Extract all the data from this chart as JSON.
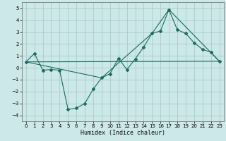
{
  "title": "",
  "xlabel": "Humidex (Indice chaleur)",
  "bg_color": "#cce8e8",
  "grid_color": "#aacccc",
  "line_color": "#1a6b60",
  "xlim": [
    -0.5,
    23.5
  ],
  "ylim": [
    -4.5,
    5.5
  ],
  "yticks": [
    -4,
    -3,
    -2,
    -1,
    0,
    1,
    2,
    3,
    4,
    5
  ],
  "xticks": [
    0,
    1,
    2,
    3,
    4,
    5,
    6,
    7,
    8,
    9,
    10,
    11,
    12,
    13,
    14,
    15,
    16,
    17,
    18,
    19,
    20,
    21,
    22,
    23
  ],
  "series1_x": [
    0,
    1,
    2,
    3,
    4,
    5,
    6,
    7,
    8,
    9,
    10,
    11,
    12,
    13,
    14,
    15,
    16,
    17,
    18,
    19,
    20,
    21,
    22,
    23
  ],
  "series1_y": [
    0.5,
    1.2,
    -0.2,
    -0.15,
    -0.2,
    -3.5,
    -3.4,
    -3.0,
    -1.8,
    -0.85,
    -0.5,
    0.8,
    -0.15,
    0.75,
    1.75,
    2.9,
    3.1,
    4.9,
    3.2,
    2.9,
    2.1,
    1.55,
    1.3,
    0.55
  ],
  "series2_x": [
    0,
    9,
    15,
    17,
    23
  ],
  "series2_y": [
    0.5,
    -0.85,
    2.9,
    4.9,
    0.55
  ],
  "series3_x": [
    0,
    23
  ],
  "series3_y": [
    0.5,
    0.55
  ],
  "tick_fontsize": 5,
  "xlabel_fontsize": 6,
  "linewidth": 0.8,
  "markersize": 2.0
}
